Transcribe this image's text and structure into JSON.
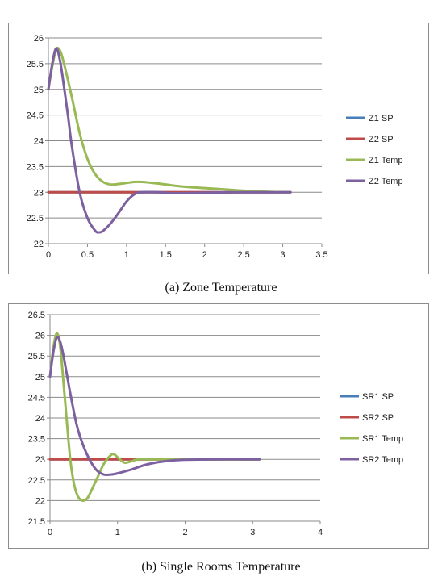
{
  "chart_data": [
    {
      "type": "line",
      "caption": "(a) Zone Temperature",
      "xlim": [
        0,
        3.5
      ],
      "ylim": [
        22,
        26
      ],
      "x_ticks": [
        "0",
        "0.5",
        "1",
        "1.5",
        "2",
        "2.5",
        "3",
        "3.5"
      ],
      "y_ticks": [
        "22",
        "22.5",
        "23",
        "23.5",
        "24",
        "24.5",
        "25",
        "25.5",
        "26"
      ],
      "grid": "horizontal",
      "legend_position": "right",
      "series": [
        {
          "name": "Z1 SP",
          "color": "#4a7ebb",
          "x": [
            0,
            3.1
          ],
          "y": [
            23,
            23
          ]
        },
        {
          "name": "Z2 SP",
          "color": "#be4b48",
          "x": [
            0,
            3.1
          ],
          "y": [
            23,
            23
          ]
        },
        {
          "name": "Z1 Temp",
          "color": "#98b954",
          "x": [
            0,
            0.05,
            0.1,
            0.15,
            0.2,
            0.3,
            0.4,
            0.5,
            0.6,
            0.7,
            0.8,
            0.9,
            1.0,
            1.1,
            1.2,
            1.4,
            1.6,
            1.8,
            2.0,
            2.2,
            2.4,
            2.6,
            2.8,
            3.0,
            3.1
          ],
          "y": [
            25.0,
            25.45,
            25.78,
            25.75,
            25.5,
            24.85,
            24.15,
            23.65,
            23.35,
            23.2,
            23.15,
            23.16,
            23.18,
            23.2,
            23.2,
            23.17,
            23.13,
            23.1,
            23.08,
            23.06,
            23.04,
            23.02,
            23.01,
            23.0,
            23.0
          ]
        },
        {
          "name": "Z2 Temp",
          "color": "#7d60a0",
          "x": [
            0,
            0.05,
            0.1,
            0.15,
            0.2,
            0.25,
            0.3,
            0.4,
            0.5,
            0.6,
            0.65,
            0.7,
            0.8,
            0.9,
            1.0,
            1.1,
            1.2,
            1.4,
            1.6,
            2.0,
            2.5,
            3.0,
            3.1
          ],
          "y": [
            25.0,
            25.5,
            25.8,
            25.55,
            25.05,
            24.5,
            23.9,
            23.0,
            22.5,
            22.25,
            22.22,
            22.25,
            22.4,
            22.6,
            22.82,
            22.96,
            23.0,
            23.0,
            22.98,
            22.99,
            23.0,
            23.0,
            23.0
          ]
        }
      ]
    },
    {
      "type": "line",
      "caption": "(b) Single Rooms Temperature",
      "xlim": [
        0,
        4
      ],
      "ylim": [
        21.5,
        26.5
      ],
      "x_ticks": [
        "0",
        "1",
        "2",
        "3",
        "4"
      ],
      "y_ticks": [
        "21.5",
        "22",
        "22.5",
        "23",
        "23.5",
        "24",
        "24.5",
        "25",
        "25.5",
        "26",
        "26.5"
      ],
      "grid": "horizontal",
      "legend_position": "right",
      "series": [
        {
          "name": "SR1 SP",
          "color": "#4a7ebb",
          "x": [
            0,
            3.1
          ],
          "y": [
            23,
            23
          ]
        },
        {
          "name": "SR2 SP",
          "color": "#be4b48",
          "x": [
            0,
            3.1
          ],
          "y": [
            23,
            23
          ]
        },
        {
          "name": "SR1 Temp",
          "color": "#98b954",
          "x": [
            0,
            0.05,
            0.1,
            0.15,
            0.2,
            0.25,
            0.3,
            0.35,
            0.4,
            0.45,
            0.5,
            0.55,
            0.6,
            0.7,
            0.8,
            0.9,
            0.95,
            1.0,
            1.1,
            1.2,
            1.3,
            1.5,
            2.0,
            2.5,
            3.0,
            3.1
          ],
          "y": [
            25.0,
            25.7,
            26.05,
            25.75,
            24.85,
            23.9,
            23.0,
            22.45,
            22.15,
            22.02,
            22.0,
            22.05,
            22.2,
            22.55,
            22.9,
            23.1,
            23.12,
            23.05,
            22.92,
            22.95,
            23.0,
            23.0,
            23.0,
            23.0,
            23.0,
            23.0
          ]
        },
        {
          "name": "SR2 Temp",
          "color": "#7d60a0",
          "x": [
            0,
            0.05,
            0.1,
            0.15,
            0.2,
            0.3,
            0.4,
            0.5,
            0.6,
            0.7,
            0.8,
            0.9,
            1.0,
            1.2,
            1.4,
            1.6,
            1.8,
            2.0,
            2.5,
            3.0,
            3.1
          ],
          "y": [
            25.0,
            25.6,
            25.95,
            25.85,
            25.5,
            24.6,
            23.8,
            23.3,
            22.95,
            22.72,
            22.63,
            22.63,
            22.66,
            22.75,
            22.86,
            22.93,
            22.97,
            22.99,
            23.0,
            23.0,
            23.0
          ]
        }
      ]
    }
  ]
}
